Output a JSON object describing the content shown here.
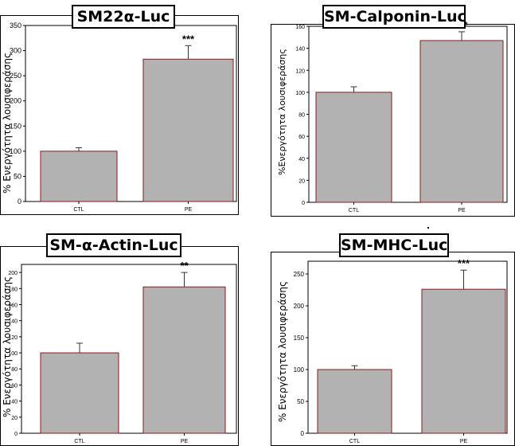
{
  "chart_data": [
    {
      "type": "bar",
      "title": "SM22α-Luc",
      "ylabel": "% Ενεργότητα λουσιφεράσης",
      "categories": [
        "CTL",
        "PE"
      ],
      "values": [
        100,
        283
      ],
      "errors": [
        7,
        27
      ],
      "significance": [
        "",
        "***"
      ],
      "ylim": [
        0,
        350
      ],
      "yticks": [
        0,
        50,
        100,
        150,
        200,
        250,
        300,
        350
      ],
      "bar_color": "#b2b2b2",
      "bar_edge_color": "#8b1a1a"
    },
    {
      "type": "bar",
      "title": "SM-Calponin-Luc",
      "ylabel": "%Ενεργότητα λουσιφεράσης",
      "categories": [
        "CTL",
        "PE"
      ],
      "values": [
        100,
        147
      ],
      "errors": [
        5,
        8
      ],
      "significance": [
        "",
        "***"
      ],
      "ylim": [
        0,
        160
      ],
      "yticks": [
        0,
        20,
        40,
        60,
        80,
        100,
        120,
        140,
        160
      ],
      "bar_color": "#b2b2b2",
      "bar_edge_color": "#8b1a1a"
    },
    {
      "type": "bar",
      "title": "SM-α-Actin-Luc",
      "ylabel": "% Ενεργότητα λουσιφεράσης",
      "categories": [
        "CTL",
        "PE"
      ],
      "values": [
        100,
        182
      ],
      "errors": [
        12,
        18
      ],
      "significance": [
        "",
        "**"
      ],
      "ylim": [
        0,
        210
      ],
      "yticks": [
        0,
        20,
        40,
        60,
        80,
        100,
        120,
        140,
        160,
        180,
        200
      ],
      "bar_color": "#b2b2b2",
      "bar_edge_color": "#8b1a1a"
    },
    {
      "type": "bar",
      "title": "SM-MHC-Luc",
      "ylabel": "% Ενεργότητα λουσιφεράσης",
      "categories": [
        "CTL",
        "PE"
      ],
      "values": [
        100,
        226
      ],
      "errors": [
        6,
        30
      ],
      "significance": [
        "",
        "***"
      ],
      "ylim": [
        0,
        270
      ],
      "yticks": [
        0,
        50,
        100,
        150,
        200,
        250
      ],
      "bar_color": "#b2b2b2",
      "bar_edge_color": "#8b1a1a"
    }
  ]
}
